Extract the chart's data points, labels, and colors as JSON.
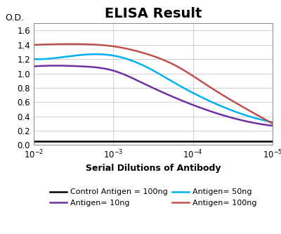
{
  "title": "ELISA Result",
  "ylabel": "O.D.",
  "xlabel": "Serial Dilutions of Antibody",
  "ylim": [
    0,
    1.7
  ],
  "yticks": [
    0,
    0.2,
    0.4,
    0.6,
    0.8,
    1.0,
    1.2,
    1.4,
    1.6
  ],
  "xtick_positions": [
    2,
    3,
    4,
    5
  ],
  "lines": [
    {
      "label": "Control Antigen = 100ng",
      "color": "#000000",
      "x": [
        2,
        2.5,
        3,
        3.5,
        4,
        4.5,
        5
      ],
      "y": [
        0.05,
        0.05,
        0.05,
        0.05,
        0.05,
        0.05,
        0.05
      ]
    },
    {
      "label": "Antigen= 10ng",
      "color": "#7030A0",
      "x": [
        2,
        2.3,
        2.6,
        3.0,
        3.4,
        3.8,
        4.2,
        4.6,
        5.0
      ],
      "y": [
        1.1,
        1.11,
        1.1,
        1.04,
        0.85,
        0.65,
        0.48,
        0.35,
        0.27
      ]
    },
    {
      "label": "Antigen= 50ng",
      "color": "#00B0F0",
      "x": [
        2,
        2.3,
        2.6,
        3.0,
        3.4,
        3.8,
        4.2,
        4.6,
        5.0
      ],
      "y": [
        1.2,
        1.22,
        1.26,
        1.25,
        1.1,
        0.85,
        0.62,
        0.44,
        0.32
      ]
    },
    {
      "label": "Antigen= 100ng",
      "color": "#C0504D",
      "x": [
        2,
        2.3,
        2.6,
        3.0,
        3.4,
        3.8,
        4.2,
        4.6,
        5.0
      ],
      "y": [
        1.4,
        1.41,
        1.41,
        1.38,
        1.28,
        1.1,
        0.82,
        0.55,
        0.3
      ]
    }
  ],
  "background_color": "#FFFFFF",
  "grid_color": "#BBBBBB",
  "title_fontsize": 14,
  "label_fontsize": 9,
  "tick_fontsize": 8.5,
  "legend_fontsize": 8
}
